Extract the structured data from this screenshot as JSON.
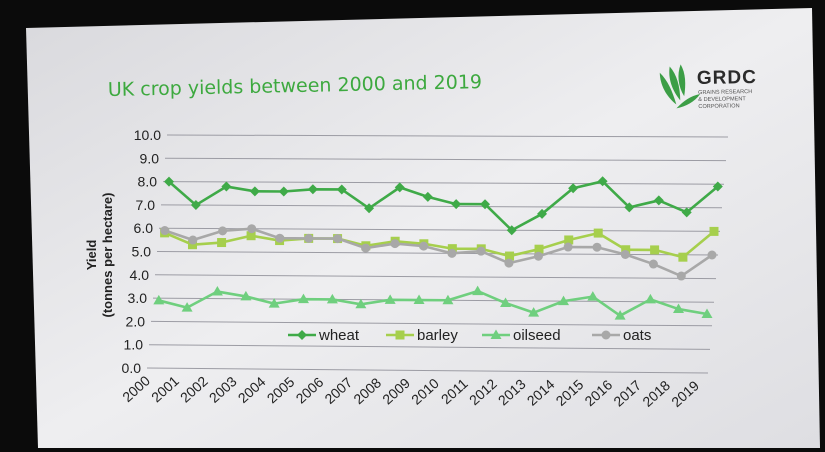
{
  "slide": {
    "title": "UK crop yields between 2000 and 2019",
    "logo": {
      "name": "GRDC",
      "tagline_lines": [
        "GRAINS RESEARCH",
        "& DEVELOPMENT",
        "CORPORATION"
      ]
    }
  },
  "chart_data": {
    "type": "line",
    "title": "UK crop yields between 2000 and 2019",
    "ylabel_lines": [
      "Yield",
      "(tonnes per hectare)"
    ],
    "xlabel": "",
    "categories": [
      "2000",
      "2001",
      "2002",
      "2003",
      "2004",
      "2005",
      "2006",
      "2007",
      "2008",
      "2009",
      "2010",
      "2011",
      "2012",
      "2013",
      "2014",
      "2015",
      "2016",
      "2017",
      "2018",
      "2019"
    ],
    "ylim": [
      0,
      10
    ],
    "yticks": [
      "0.0",
      "1.0",
      "2.0",
      "3.0",
      "4.0",
      "5.0",
      "6.0",
      "7.0",
      "8.0",
      "9.0",
      "10.0"
    ],
    "grid": true,
    "legend_position": "bottom-center",
    "series": [
      {
        "name": "wheat",
        "color": "#3faa48",
        "marker": "diamond",
        "values": [
          8.0,
          7.0,
          7.8,
          7.6,
          7.6,
          7.7,
          7.7,
          6.9,
          7.8,
          7.4,
          7.1,
          7.1,
          6.0,
          6.7,
          7.8,
          8.1,
          7.0,
          7.3,
          6.8,
          7.9
        ]
      },
      {
        "name": "barley",
        "color": "#a6cf4d",
        "marker": "square",
        "values": [
          5.8,
          5.3,
          5.4,
          5.7,
          5.5,
          5.6,
          5.6,
          5.3,
          5.5,
          5.4,
          5.2,
          5.2,
          4.9,
          5.2,
          5.6,
          5.9,
          5.2,
          5.2,
          4.9,
          6.0
        ]
      },
      {
        "name": "oilseed",
        "color": "#6fcf7e",
        "marker": "triangle",
        "values": [
          2.9,
          2.6,
          3.3,
          3.1,
          2.8,
          3.0,
          3.0,
          2.8,
          3.0,
          3.0,
          3.0,
          3.4,
          2.9,
          2.5,
          3.0,
          3.2,
          2.4,
          3.1,
          2.7,
          2.5
        ]
      },
      {
        "name": "oats",
        "color": "#a8a8a8",
        "marker": "circle",
        "values": [
          5.9,
          5.5,
          5.9,
          6.0,
          5.6,
          5.6,
          5.6,
          5.2,
          5.4,
          5.3,
          5.0,
          5.1,
          4.6,
          4.9,
          5.3,
          5.3,
          5.0,
          4.6,
          4.1,
          5.0
        ]
      }
    ]
  }
}
